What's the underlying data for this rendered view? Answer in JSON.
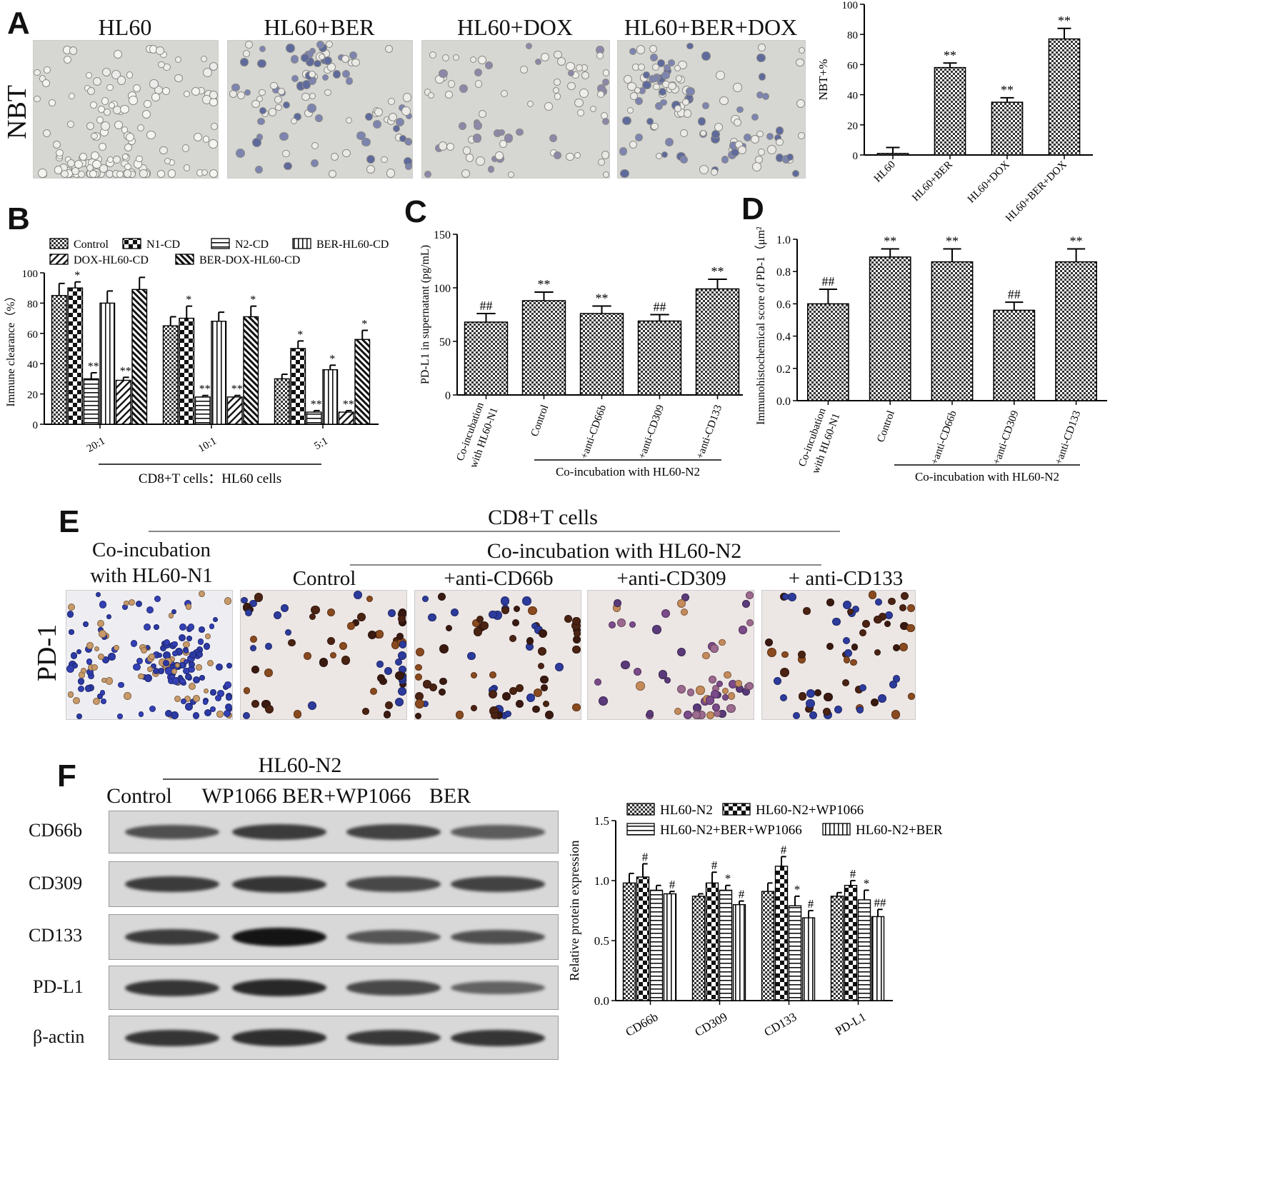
{
  "panels": {
    "A": "A",
    "B": "B",
    "C": "C",
    "D": "D",
    "E": "E",
    "F": "F"
  },
  "panel_a": {
    "row_label": "NBT",
    "images": [
      {
        "title": "HL60"
      },
      {
        "title": "HL60+BER"
      },
      {
        "title": "HL60+DOX"
      },
      {
        "title": "HL60+BER+DOX"
      }
    ]
  },
  "panel_e": {
    "header": "CD8+T cells",
    "subheader": "Co-incubation with HL60-N2",
    "row_label": "PD-1",
    "images": [
      {
        "title": "Co-incubation\nwith HL60-N1"
      },
      {
        "title": "Control"
      },
      {
        "title": "+anti-CD66b"
      },
      {
        "title": "+anti-CD309"
      },
      {
        "title": "+ anti-CD133"
      }
    ]
  },
  "panel_f_blot": {
    "group_header": "HL60-N2",
    "columns": [
      "Control",
      "WP1066",
      "BER+WP1066",
      "BER"
    ],
    "rows": [
      "CD66b",
      "CD309",
      "CD133",
      "PD-L1",
      "β-actin"
    ],
    "intensity": [
      [
        0.55,
        0.7,
        0.65,
        0.45
      ],
      [
        0.7,
        0.75,
        0.6,
        0.65
      ],
      [
        0.7,
        1.0,
        0.5,
        0.55
      ],
      [
        0.75,
        0.85,
        0.6,
        0.4
      ],
      [
        0.75,
        0.8,
        0.72,
        0.75
      ]
    ]
  },
  "chart_data": [
    {
      "id": "A-bar",
      "type": "bar",
      "categories": [
        "HL60",
        "HL60+BER",
        "HL60+DOX",
        "HL60+BER+DOX"
      ],
      "values": [
        1,
        58,
        35,
        77
      ],
      "errors": [
        4,
        3,
        3,
        7
      ],
      "annotations": [
        "",
        "**",
        "**",
        "**"
      ],
      "ylabel": "NBT+%",
      "ylim": [
        0,
        100
      ],
      "yticks": [
        0,
        20,
        40,
        60,
        80,
        100
      ]
    },
    {
      "id": "B",
      "type": "bar",
      "categories": [
        "20:1",
        "10:1",
        "5:1"
      ],
      "series": [
        {
          "name": "Control",
          "values": [
            85,
            65,
            30
          ],
          "errors": [
            8,
            6,
            3
          ],
          "annotations": [
            "",
            "",
            ""
          ]
        },
        {
          "name": "N1-CD",
          "values": [
            90,
            70,
            50
          ],
          "errors": [
            4,
            8,
            5
          ],
          "annotations": [
            "*",
            "*",
            "*"
          ]
        },
        {
          "name": "N2-CD",
          "values": [
            30,
            18,
            8
          ],
          "errors": [
            4,
            1,
            1
          ],
          "annotations": [
            "**",
            "**",
            "**"
          ]
        },
        {
          "name": "BER-HL60-CD",
          "values": [
            80,
            68,
            36
          ],
          "errors": [
            8,
            6,
            3
          ],
          "annotations": [
            "",
            "",
            "*"
          ]
        },
        {
          "name": "DOX-HL60-CD",
          "values": [
            29,
            18,
            8
          ],
          "errors": [
            2,
            1,
            1
          ],
          "annotations": [
            "**",
            "**",
            "**"
          ]
        },
        {
          "name": "BER-DOX-HL60-CD",
          "values": [
            89,
            71,
            56
          ],
          "errors": [
            8,
            7,
            6
          ],
          "annotations": [
            "",
            "*",
            "*"
          ]
        }
      ],
      "xlabel": "CD8+T cells：HL60 cells",
      "ylabel": "Immune clearance（%）",
      "ylim": [
        0,
        100
      ],
      "yticks": [
        0,
        20,
        40,
        60,
        80,
        100
      ]
    },
    {
      "id": "C",
      "type": "bar",
      "categories": [
        "Co-incubation\nwith HL60-N1",
        "Control",
        "+anti-CD66b",
        "+anti-CD309",
        "+anti-CD133"
      ],
      "values": [
        68,
        88,
        76,
        69,
        99
      ],
      "errors": [
        8,
        8,
        7,
        6,
        9
      ],
      "annotations": [
        "##",
        "**",
        "**",
        "##",
        "**"
      ],
      "group_label": "Co-incubation with HL60-N2",
      "ylabel": "PD-L1 in supernatant (pg/mL)",
      "ylim": [
        0,
        150
      ],
      "yticks": [
        0,
        50,
        100,
        150
      ]
    },
    {
      "id": "D",
      "type": "bar",
      "categories": [
        "Co-incubation\nwith HL60-N1",
        "Control",
        "+anti-CD66b",
        "+anti-CD309",
        "+anti-CD133"
      ],
      "values": [
        0.6,
        0.89,
        0.86,
        0.56,
        0.86
      ],
      "errors": [
        0.09,
        0.05,
        0.08,
        0.05,
        0.08
      ],
      "annotations": [
        "##",
        "**",
        "**",
        "##",
        "**"
      ],
      "group_label": "Co-incubation with HL60-N2",
      "ylabel": "Immunohistochemical score of PD-1（μm²）",
      "ylim": [
        0,
        1.0
      ],
      "yticks": [
        0.0,
        0.2,
        0.4,
        0.6,
        0.8,
        1.0
      ]
    },
    {
      "id": "F-bar",
      "type": "bar",
      "categories": [
        "CD66b",
        "CD309",
        "CD133",
        "PD-L1"
      ],
      "series": [
        {
          "name": "HL60-N2",
          "values": [
            0.98,
            0.87,
            0.91,
            0.87
          ],
          "errors": [
            0.08,
            0.02,
            0.07,
            0.03
          ],
          "annotations": [
            "",
            "",
            "",
            ""
          ]
        },
        {
          "name": "HL60-N2+WP1066",
          "values": [
            1.03,
            0.98,
            1.12,
            0.96
          ],
          "errors": [
            0.11,
            0.09,
            0.08,
            0.04
          ],
          "annotations": [
            "#",
            "#",
            "#",
            "#"
          ]
        },
        {
          "name": "HL60-N2+BER+WP1066",
          "values": [
            0.92,
            0.92,
            0.79,
            0.84
          ],
          "errors": [
            0.04,
            0.04,
            0.08,
            0.08
          ],
          "annotations": [
            "",
            "*",
            "*",
            "*"
          ]
        },
        {
          "name": "HL60-N2+BER",
          "values": [
            0.89,
            0.8,
            0.69,
            0.7
          ],
          "errors": [
            0.02,
            0.03,
            0.06,
            0.06
          ],
          "annotations": [
            "#",
            "#",
            "#",
            "##"
          ]
        }
      ],
      "ylabel": "Relative protein expression",
      "ylim": [
        0,
        1.5
      ],
      "yticks": [
        0.0,
        0.5,
        1.0,
        1.5
      ]
    }
  ]
}
